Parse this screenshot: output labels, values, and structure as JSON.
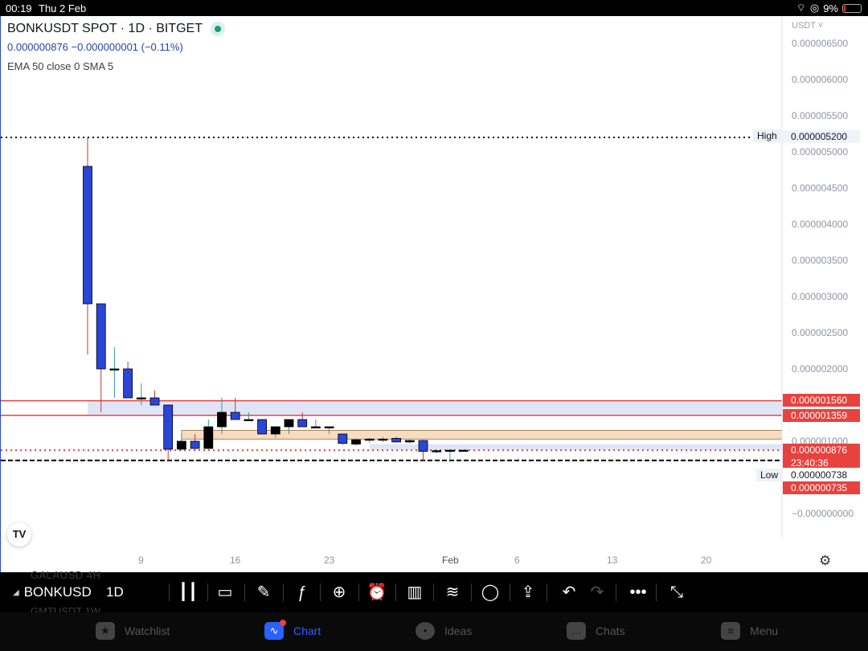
{
  "status_bar": {
    "time": "00:19",
    "date": "Thu 2 Feb",
    "battery": "9%"
  },
  "header": {
    "symbol": "BONKUSDT SPOT · 1D · BITGET",
    "price_line": "0.000000876  −0.000000001 (−0.11%)",
    "indicators": "EMA  50 close 0 SMA 5",
    "currency": "USDT"
  },
  "colors": {
    "up": "#000000",
    "down": "#2a46d6",
    "zone_red": "#e8423f",
    "zone_fill_blue": "#dfe5f7",
    "zone_fill_orange": "#f8dcc2",
    "accent": "#2962ff"
  },
  "price_tags": {
    "high_label": "High",
    "high_value": "0.000005200",
    "resistance_top": "0.000001560",
    "resistance_bottom": "0.000001359",
    "last_price": "0.000000876",
    "countdown": "23:40:36",
    "low_label": "Low",
    "low_value": "0.000000738",
    "support": "0.000000735"
  },
  "chart_data": {
    "type": "candlestick",
    "title": "BONKUSDT SPOT · 1D · BITGET",
    "y_axis_ticks": [
      "0.000006500",
      "0.000006000",
      "0.000005500",
      "0.000005000",
      "0.000004500",
      "0.000004000",
      "0.000003500",
      "0.000003000",
      "0.000002500",
      "0.000002000",
      "0.000001000",
      "−0.000000000"
    ],
    "x_axis_ticks": [
      "9",
      "16",
      "23",
      "Feb",
      "6",
      "13",
      "20"
    ],
    "ylim": [
      0,
      6.9e-06
    ],
    "x_start": "2023-01-06",
    "zones": [
      {
        "low": 1.359e-06,
        "high": 1.56e-06,
        "start": "2023-01-06",
        "color": "blue"
      },
      {
        "low": 1.03e-06,
        "high": 1.15e-06,
        "start": "2023-01-13",
        "color": "orange"
      },
      {
        "low": 8.8e-07,
        "high": 9.6e-07,
        "start": "2023-01-27",
        "color": "blue"
      }
    ],
    "levels": [
      {
        "value": 5.2e-06,
        "style": "dotted",
        "color": "#000000"
      },
      {
        "value": 1.56e-06,
        "style": "solid",
        "color": "#e8423f"
      },
      {
        "value": 1.359e-06,
        "style": "solid",
        "color": "#e8423f"
      },
      {
        "value": 8.76e-07,
        "style": "dotted",
        "color": "#e8423f"
      },
      {
        "value": 7.35e-07,
        "style": "dashed",
        "color": "#000000"
      }
    ],
    "candles": [
      {
        "date": "2023-01-06",
        "o": 4.8e-06,
        "h": 5.2e-06,
        "l": 2.2e-06,
        "c": 2.9e-06
      },
      {
        "date": "2023-01-07",
        "o": 2.9e-06,
        "h": 2.9e-06,
        "l": 1.4e-06,
        "c": 2e-06
      },
      {
        "date": "2023-01-08",
        "o": 2e-06,
        "h": 2.3e-06,
        "l": 1.6e-06,
        "c": 2e-06
      },
      {
        "date": "2023-01-09",
        "o": 2e-06,
        "h": 2.1e-06,
        "l": 1.6e-06,
        "c": 1.6e-06
      },
      {
        "date": "2023-01-10",
        "o": 1.6e-06,
        "h": 1.8e-06,
        "l": 1.5e-06,
        "c": 1.6e-06
      },
      {
        "date": "2023-01-11",
        "o": 1.6e-06,
        "h": 1.7e-06,
        "l": 1.5e-06,
        "c": 1.5e-06
      },
      {
        "date": "2023-01-12",
        "o": 1.5e-06,
        "h": 1.5e-06,
        "l": 7.3e-07,
        "c": 8.9e-07
      },
      {
        "date": "2023-01-13",
        "o": 8.9e-07,
        "h": 1.1e-06,
        "l": 8.7e-07,
        "c": 1e-06
      },
      {
        "date": "2023-01-14",
        "o": 1e-06,
        "h": 1.1e-06,
        "l": 8.8e-07,
        "c": 9e-07
      },
      {
        "date": "2023-01-15",
        "o": 9e-07,
        "h": 1.3e-06,
        "l": 8.9e-07,
        "c": 1.2e-06
      },
      {
        "date": "2023-01-16",
        "o": 1.2e-06,
        "h": 1.6e-06,
        "l": 1.1e-06,
        "c": 1.4e-06
      },
      {
        "date": "2023-01-17",
        "o": 1.4e-06,
        "h": 1.6e-06,
        "l": 1.3e-06,
        "c": 1.3e-06
      },
      {
        "date": "2023-01-18",
        "o": 1.3e-06,
        "h": 1.4e-06,
        "l": 1.3e-06,
        "c": 1.3e-06
      },
      {
        "date": "2023-01-19",
        "o": 1.3e-06,
        "h": 1.3e-06,
        "l": 1.1e-06,
        "c": 1.1e-06
      },
      {
        "date": "2023-01-20",
        "o": 1.1e-06,
        "h": 1.2e-06,
        "l": 1.05e-06,
        "c": 1.2e-06
      },
      {
        "date": "2023-01-21",
        "o": 1.2e-06,
        "h": 1.3e-06,
        "l": 1.1e-06,
        "c": 1.3e-06
      },
      {
        "date": "2023-01-22",
        "o": 1.3e-06,
        "h": 1.4e-06,
        "l": 1.2e-06,
        "c": 1.2e-06
      },
      {
        "date": "2023-01-23",
        "o": 1.2e-06,
        "h": 1.3e-06,
        "l": 1.2e-06,
        "c": 1.2e-06
      },
      {
        "date": "2023-01-24",
        "o": 1.2e-06,
        "h": 1.2e-06,
        "l": 1.1e-06,
        "c": 1.2e-06
      },
      {
        "date": "2023-01-25",
        "o": 1.1e-06,
        "h": 1.1e-06,
        "l": 9.5e-07,
        "c": 9.7e-07
      },
      {
        "date": "2023-01-26",
        "o": 9.6e-07,
        "h": 1.04e-06,
        "l": 9.4e-07,
        "c": 1.02e-06
      },
      {
        "date": "2023-01-27",
        "o": 1.02e-06,
        "h": 1.05e-06,
        "l": 9.8e-07,
        "c": 1.03e-06
      },
      {
        "date": "2023-01-28",
        "o": 1.03e-06,
        "h": 1.06e-06,
        "l": 9.9e-07,
        "c": 1.03e-06
      },
      {
        "date": "2023-01-29",
        "o": 1.04e-06,
        "h": 1.06e-06,
        "l": 9.8e-07,
        "c": 9.9e-07
      },
      {
        "date": "2023-01-30",
        "o": 9.9e-07,
        "h": 1.02e-06,
        "l": 9.7e-07,
        "c": 1.01e-06
      },
      {
        "date": "2023-01-31",
        "o": 1.01e-06,
        "h": 1.02e-06,
        "l": 7.3e-07,
        "c": 8.6e-07
      },
      {
        "date": "2023-02-01",
        "o": 8.6e-07,
        "h": 8.8e-07,
        "l": 8.3e-07,
        "c": 8.7e-07
      },
      {
        "date": "2023-02-02",
        "o": 8.7e-07,
        "h": 8.9e-07,
        "l": 7.4e-07,
        "c": 8.76e-07
      },
      {
        "date": "2023-02-03",
        "o": 8.76e-07,
        "h": 8.78e-07,
        "l": 8.74e-07,
        "c": 8.76e-07
      }
    ]
  },
  "toolbar": {
    "ghost_top": "GALAUSD  4H",
    "ghost_bottom": "GMTUSDT  1W",
    "symbol": "BONKUSD",
    "interval": "1D"
  },
  "bottom_nav": {
    "items": [
      {
        "label": "Watchlist",
        "icon": "star-icon"
      },
      {
        "label": "Chart",
        "icon": "chart-icon"
      },
      {
        "label": "Ideas",
        "icon": "lightbulb-icon"
      },
      {
        "label": "Chats",
        "icon": "chat-icon"
      },
      {
        "label": "Menu",
        "icon": "menu-icon"
      }
    ],
    "active": "Chart"
  }
}
